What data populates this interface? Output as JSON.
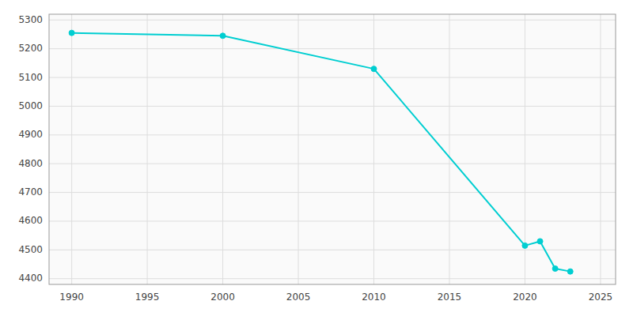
{
  "chart_data": {
    "type": "line",
    "x": [
      1990,
      2000,
      2010,
      2020,
      2021,
      2022,
      2023
    ],
    "values": [
      5255,
      5245,
      5130,
      4515,
      4530,
      4435,
      4425
    ],
    "color": "#00CED1",
    "marker": "circle",
    "xlim": [
      1988.5,
      2026
    ],
    "ylim": [
      4380,
      5320
    ],
    "xticks": [
      1990,
      1995,
      2000,
      2005,
      2010,
      2015,
      2020,
      2025
    ],
    "yticks": [
      4400,
      4500,
      4600,
      4700,
      4800,
      4900,
      5000,
      5100,
      5200,
      5300
    ],
    "grid": true
  }
}
